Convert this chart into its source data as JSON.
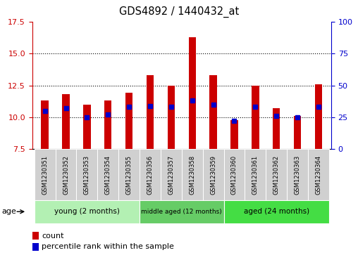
{
  "title": "GDS4892 / 1440432_at",
  "samples": [
    "GSM1230351",
    "GSM1230352",
    "GSM1230353",
    "GSM1230354",
    "GSM1230355",
    "GSM1230356",
    "GSM1230357",
    "GSM1230358",
    "GSM1230359",
    "GSM1230360",
    "GSM1230361",
    "GSM1230362",
    "GSM1230363",
    "GSM1230364"
  ],
  "counts": [
    11.3,
    11.8,
    11.0,
    11.3,
    11.9,
    13.3,
    12.5,
    16.3,
    13.3,
    9.8,
    12.5,
    10.7,
    10.1,
    12.6
  ],
  "percentile_ranks": [
    30,
    32,
    25,
    27,
    33,
    34,
    33,
    38,
    35,
    22,
    33,
    26,
    25,
    33
  ],
  "bar_color": "#cc0000",
  "marker_color": "#0000cc",
  "ylim_left": [
    7.5,
    17.5
  ],
  "ylim_right": [
    0,
    100
  ],
  "yticks_left": [
    7.5,
    10.0,
    12.5,
    15.0,
    17.5
  ],
  "yticks_right": [
    0,
    25,
    50,
    75,
    100
  ],
  "grid_yticks": [
    10.0,
    12.5,
    15.0
  ],
  "background_color": "#ffffff",
  "group_labels": [
    "young (2 months)",
    "middle aged (12 months)",
    "aged (24 months)"
  ],
  "group_ranges": [
    [
      0,
      5
    ],
    [
      5,
      9
    ],
    [
      9,
      14
    ]
  ],
  "group_colors": [
    "#b3f0b3",
    "#66cc66",
    "#44dd44"
  ],
  "age_label": "age",
  "legend_count_label": "count",
  "legend_pct_label": "percentile rank within the sample",
  "bar_width": 0.35
}
